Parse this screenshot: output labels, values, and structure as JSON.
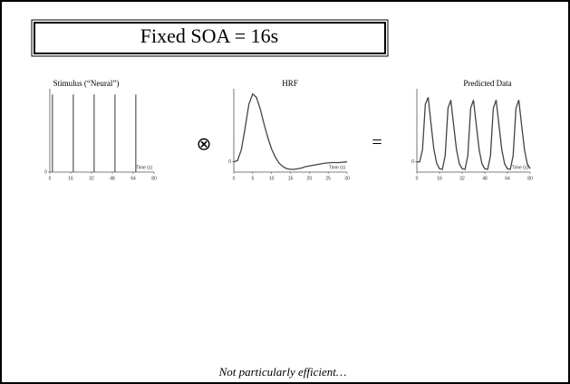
{
  "slide": {
    "title": "Fixed SOA = 16s",
    "operators": [
      "⊗",
      "="
    ],
    "caption": "Not particularly efficient…"
  },
  "chart_data": [
    {
      "type": "impulse",
      "title": "Stimulus (“Neural”)",
      "x_label": "Time (s)",
      "x": [
        2,
        18,
        34,
        50,
        66
      ],
      "values": [
        1,
        1,
        1,
        1,
        1
      ],
      "color": "#333333",
      "xlim": [
        0,
        80
      ],
      "xticks": [
        0,
        16,
        32,
        48,
        64,
        80
      ],
      "ylim": [
        0,
        1.05
      ],
      "yticks": [
        0
      ]
    },
    {
      "type": "line",
      "title": "HRF",
      "x_label": "Time (s)",
      "x": [
        0,
        1,
        2,
        3,
        4,
        5,
        6,
        7,
        8,
        9,
        10,
        11,
        12,
        13,
        14,
        15,
        16,
        17,
        18,
        19,
        20,
        22,
        24,
        26,
        28,
        30
      ],
      "values": [
        0,
        0.02,
        0.18,
        0.5,
        0.85,
        1.0,
        0.95,
        0.78,
        0.56,
        0.36,
        0.19,
        0.07,
        -0.02,
        -0.07,
        -0.1,
        -0.11,
        -0.11,
        -0.1,
        -0.09,
        -0.07,
        -0.06,
        -0.04,
        -0.02,
        -0.01,
        -0.01,
        0
      ],
      "color": "#444444",
      "xlim": [
        0,
        30
      ],
      "xticks": [
        0,
        5,
        10,
        15,
        20,
        25,
        30
      ],
      "ylim": [
        -0.15,
        1.05
      ],
      "yticks": [
        0
      ]
    },
    {
      "type": "line",
      "title": "Predicted Data",
      "x_label": "Time (s)",
      "x": [
        0,
        2,
        4,
        6,
        8,
        10,
        12,
        14,
        16,
        18,
        20,
        22,
        24,
        26,
        28,
        30,
        32,
        34,
        36,
        38,
        40,
        42,
        44,
        46,
        48,
        50,
        52,
        54,
        56,
        58,
        60,
        62,
        64,
        66,
        68,
        70,
        72,
        74,
        76,
        78,
        80
      ],
      "values": [
        0,
        0,
        0.18,
        0.85,
        0.95,
        0.56,
        0.19,
        -0.02,
        -0.1,
        -0.11,
        0.09,
        0.79,
        0.91,
        0.54,
        0.18,
        -0.03,
        -0.1,
        -0.11,
        0.09,
        0.79,
        0.91,
        0.54,
        0.18,
        -0.03,
        -0.1,
        -0.11,
        0.09,
        0.79,
        0.91,
        0.54,
        0.18,
        -0.03,
        -0.1,
        -0.11,
        0.09,
        0.79,
        0.91,
        0.54,
        0.18,
        -0.03,
        -0.1
      ],
      "color": "#444444",
      "xlim": [
        0,
        80
      ],
      "xticks": [
        0,
        16,
        32,
        48,
        64,
        80
      ],
      "ylim": [
        -0.15,
        1.05
      ],
      "yticks": [
        0
      ]
    }
  ]
}
